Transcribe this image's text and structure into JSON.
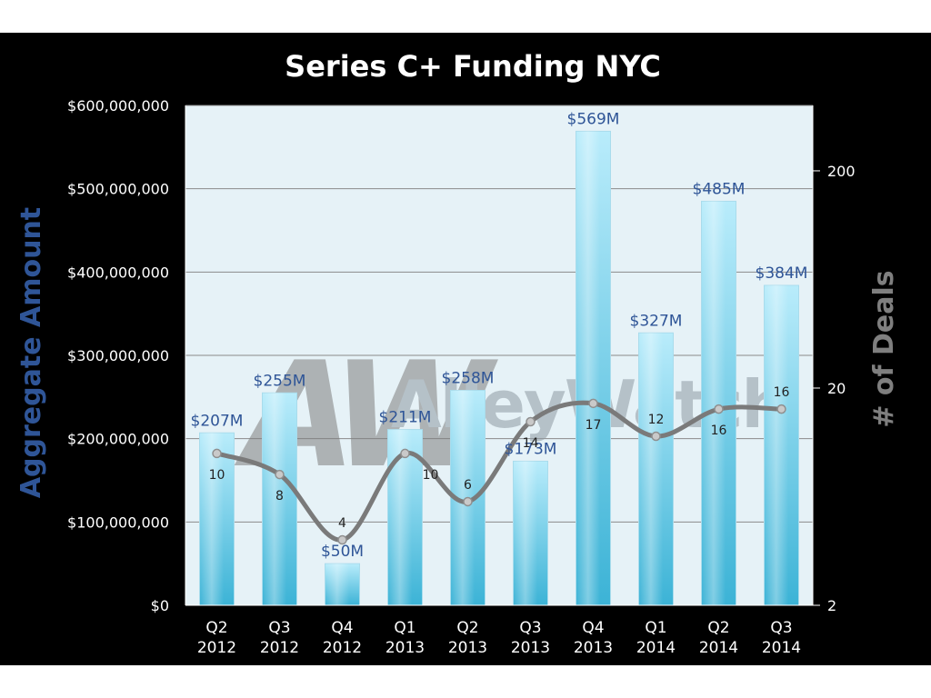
{
  "chart_data": {
    "type": "bar",
    "title": "Series C+ Funding NYC",
    "categories": [
      "Q2 2012",
      "Q3 2012",
      "Q4 2012",
      "Q1 2013",
      "Q2 2013",
      "Q3 2013",
      "Q4 2013",
      "Q1 2014",
      "Q2 2014",
      "Q3 2014"
    ],
    "category_lines": [
      [
        "Q2",
        "2012"
      ],
      [
        "Q3",
        "2012"
      ],
      [
        "Q4",
        "2012"
      ],
      [
        "Q1",
        "2013"
      ],
      [
        "Q2",
        "2013"
      ],
      [
        "Q3",
        "2013"
      ],
      [
        "Q4",
        "2013"
      ],
      [
        "Q1",
        "2014"
      ],
      [
        "Q2",
        "2014"
      ],
      [
        "Q3",
        "2014"
      ]
    ],
    "series": [
      {
        "type": "bar",
        "axis": "left",
        "values": [
          207000000,
          255000000,
          50000000,
          211000000,
          258000000,
          173000000,
          569000000,
          327000000,
          485000000,
          384000000
        ],
        "data_labels": [
          "$207M",
          "$255M",
          "$50M",
          "$211M",
          "$258M",
          "$173M",
          "$569M",
          "$327M",
          "$485M",
          "$384M"
        ],
        "color": "#5cc3e0"
      },
      {
        "type": "line",
        "axis": "right",
        "smooth": true,
        "values": [
          10,
          8,
          4,
          10,
          6,
          14,
          17,
          12,
          16,
          16
        ],
        "data_labels": [
          "10",
          "8",
          "4",
          "10",
          "6",
          "14",
          "17",
          "12",
          "16",
          "16"
        ],
        "color": "#7a7a7a"
      }
    ],
    "ylabel": "Aggregate Amount",
    "ylabel_color": "#2f5597",
    "y2label": "# of Deals",
    "y2label_color": "#7f7f7f",
    "ylim": [
      0,
      600000000
    ],
    "yticks": [
      0,
      100000000,
      200000000,
      300000000,
      400000000,
      500000000,
      600000000
    ],
    "ytick_labels": [
      "$0",
      "$100,000,000",
      "$200,000,000",
      "$300,000,000",
      "$400,000,000",
      "$500,000,000",
      "$600,000,000"
    ],
    "y2_scale": "log",
    "y2lim": [
      2,
      400
    ],
    "y2ticks": [
      2,
      20,
      200
    ],
    "y2tick_labels": [
      "2",
      "20",
      "200"
    ],
    "grid": true,
    "legend": "none",
    "plot_background": "#e6f2f7",
    "figure_background": "#000000"
  },
  "watermark": {
    "logo_text": "AW",
    "brand_text": "AlleyWatch"
  }
}
